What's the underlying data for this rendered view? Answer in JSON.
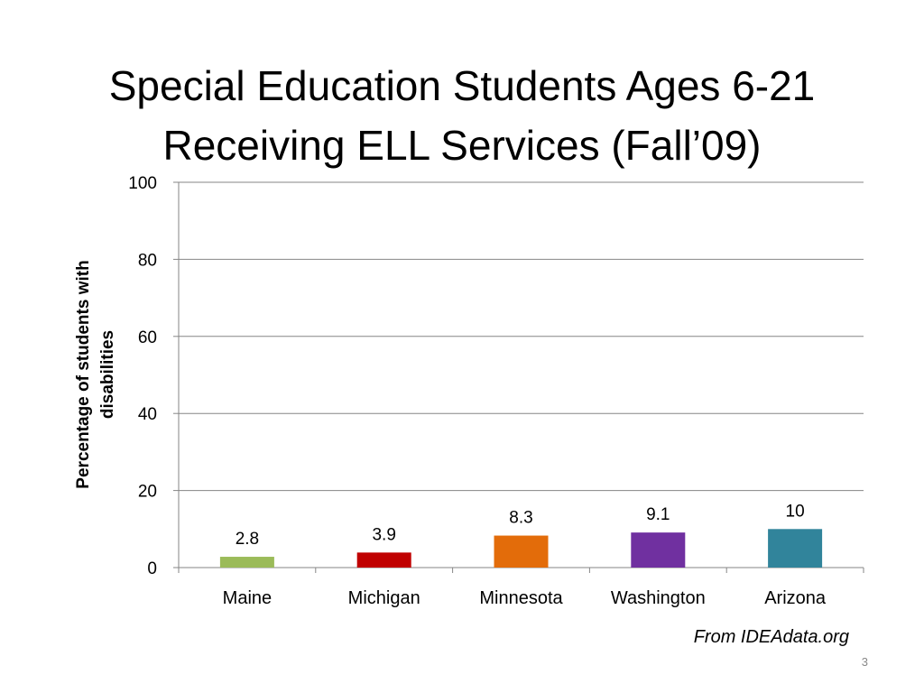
{
  "chart_data": {
    "type": "bar",
    "title": "Special Education Students Ages 6-21 Receiving ELL Services (Fall’09)",
    "title_lines": [
      "Special Education Students Ages 6-21",
      "Receiving ELL Services (Fall’09)"
    ],
    "ylabel_lines": [
      "Percentage of students with",
      "disabilities"
    ],
    "xlabel": "",
    "categories": [
      "Maine",
      "Michigan",
      "Minnesota",
      "Washington",
      "Arizona"
    ],
    "values": [
      2.8,
      3.9,
      8.3,
      9.1,
      10
    ],
    "value_labels": [
      "2.8",
      "3.9",
      "8.3",
      "9.1",
      "10"
    ],
    "colors": [
      "#9bbb59",
      "#c00000",
      "#e36c0a",
      "#7030a0",
      "#31849b"
    ],
    "ylim": [
      0,
      100
    ],
    "yticks": [
      0,
      20,
      40,
      60,
      80,
      100
    ],
    "grid": true,
    "legend": "none"
  },
  "footer": {
    "source": "From IDEAdata.org",
    "page_number": "3"
  }
}
